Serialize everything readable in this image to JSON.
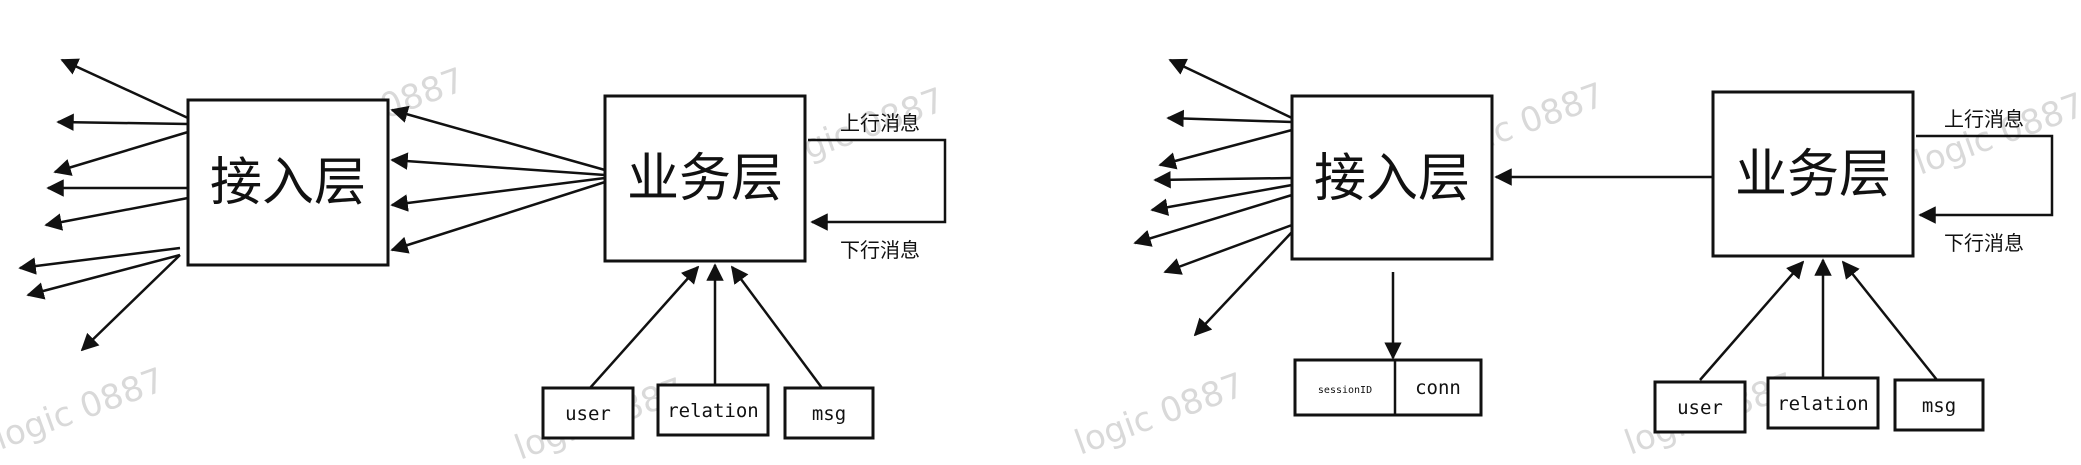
{
  "colors": {
    "ink": "#111111",
    "watermark": "#d9d9d9",
    "background": "#ffffff"
  },
  "watermark_text": "logic 0887",
  "left": {
    "access_layer": "接入层",
    "business_layer": "业务层",
    "upstream": "上行消息",
    "downstream": "下行消息",
    "db": {
      "user": "user",
      "relation": "relation",
      "msg": "msg"
    }
  },
  "right": {
    "access_layer": "接入层",
    "business_layer": "业务层",
    "upstream": "上行消息",
    "downstream": "下行消息",
    "db": {
      "user": "user",
      "relation": "relation",
      "msg": "msg"
    },
    "session_table": {
      "col1": "sessionID",
      "col2": "conn"
    }
  }
}
